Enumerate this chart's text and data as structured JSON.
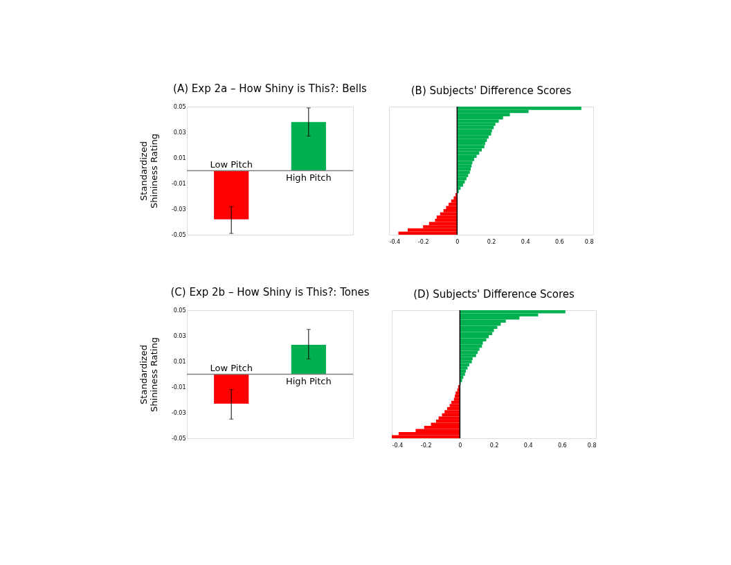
{
  "chart_data": [
    {
      "type": "bar",
      "title": "(A) Exp 2a – How Shiny is This?: Bells",
      "ylabel": "Standardized Shininess Rating",
      "categories": [
        "Low Pitch",
        "High Pitch"
      ],
      "colors": [
        "#ff0000",
        "#00b050"
      ],
      "values": [
        -0.038,
        0.038
      ],
      "errors": [
        [
          -0.049,
          -0.028
        ],
        [
          0.027,
          0.049
        ]
      ],
      "ylim": [
        -0.05,
        0.05
      ],
      "yticks": [
        -0.05,
        -0.03,
        -0.01,
        0.01,
        0.03,
        0.05
      ],
      "ref_lines": [
        {
          "axis": "y",
          "value": 0,
          "color": "#808080"
        }
      ],
      "tick_labels": "y",
      "grid": false
    },
    {
      "type": "bar",
      "orientation": "horizontal",
      "title": "(B) Subjects' Difference Scores",
      "categories": [
        null,
        null,
        null,
        null,
        null,
        null,
        null,
        null,
        null,
        null,
        null,
        null,
        null,
        null,
        null,
        null,
        null,
        null,
        null,
        null,
        null,
        null,
        null,
        null,
        null,
        null,
        null,
        null,
        null,
        null,
        null,
        null,
        null,
        null,
        null,
        null,
        null,
        null,
        null,
        null,
        null
      ],
      "values": [
        0.73,
        0.42,
        0.31,
        0.27,
        0.245,
        0.225,
        0.215,
        0.205,
        0.2,
        0.185,
        0.175,
        0.165,
        0.16,
        0.145,
        0.13,
        0.115,
        0.1,
        0.09,
        0.085,
        0.08,
        0.075,
        0.065,
        0.055,
        0.045,
        0.035,
        0.02,
        0.01,
        null,
        -0.01,
        -0.02,
        -0.035,
        -0.05,
        -0.065,
        -0.08,
        -0.1,
        -0.12,
        -0.13,
        -0.165,
        -0.2,
        -0.29,
        -0.345
      ],
      "colors": [
        "#00b050",
        "#00b050",
        "#00b050",
        "#00b050",
        "#00b050",
        "#00b050",
        "#00b050",
        "#00b050",
        "#00b050",
        "#00b050",
        "#00b050",
        "#00b050",
        "#00b050",
        "#00b050",
        "#00b050",
        "#00b050",
        "#00b050",
        "#00b050",
        "#00b050",
        "#00b050",
        "#00b050",
        "#00b050",
        "#00b050",
        "#00b050",
        "#00b050",
        "#00b050",
        "#00b050",
        "#00b050",
        "#ff0000",
        "#ff0000",
        "#ff0000",
        "#ff0000",
        "#ff0000",
        "#ff0000",
        "#ff0000",
        "#ff0000",
        "#ff0000",
        "#ff0000",
        "#ff0000",
        "#ff0000",
        "#ff0000"
      ],
      "xlim": [
        -0.4,
        0.8
      ],
      "xticks": [
        -0.4,
        -0.2,
        0,
        0.2,
        0.4,
        0.6,
        0.8
      ],
      "ref_lines": [
        {
          "axis": "x",
          "value": 0,
          "color": "#000000"
        }
      ],
      "tick_labels": "x",
      "grid": false
    },
    {
      "type": "bar",
      "title": "(C) Exp 2b – How Shiny is This?: Tones",
      "ylabel": "Standardized Shininess Rating",
      "categories": [
        "Low Pitch",
        "High Pitch"
      ],
      "colors": [
        "#ff0000",
        "#00b050"
      ],
      "values": [
        -0.023,
        0.023
      ],
      "errors": [
        [
          -0.035,
          -0.012
        ],
        [
          0.012,
          0.035
        ]
      ],
      "ylim": [
        -0.05,
        0.05
      ],
      "yticks": [
        -0.05,
        -0.03,
        -0.01,
        0.01,
        0.03,
        0.05
      ],
      "ref_lines": [
        {
          "axis": "y",
          "value": 0,
          "color": "#808080"
        }
      ],
      "tick_labels": "y",
      "grid": false
    },
    {
      "type": "bar",
      "orientation": "horizontal",
      "title": "(D) Subjects' Difference Scores",
      "categories": [
        null,
        null,
        null,
        null,
        null,
        null,
        null,
        null,
        null,
        null,
        null,
        null,
        null,
        null,
        null,
        null,
        null,
        null,
        null,
        null,
        null,
        null,
        null,
        null,
        null,
        null,
        null,
        null,
        null,
        null,
        null,
        null,
        null,
        null,
        null,
        null,
        null,
        null,
        null,
        null,
        null
      ],
      "values": [
        0.62,
        0.46,
        0.35,
        0.27,
        0.24,
        0.22,
        0.2,
        0.19,
        0.17,
        0.155,
        0.135,
        0.13,
        0.115,
        0.105,
        0.095,
        0.075,
        0.07,
        0.055,
        0.045,
        0.035,
        0.03,
        0.02,
        0.013,
        0.005,
        -0.01,
        -0.015,
        -0.025,
        -0.03,
        -0.035,
        -0.05,
        -0.06,
        -0.075,
        -0.09,
        -0.105,
        -0.125,
        -0.14,
        -0.17,
        -0.21,
        -0.26,
        -0.36,
        -0.4
      ],
      "colors": [
        "#00b050",
        "#00b050",
        "#00b050",
        "#00b050",
        "#00b050",
        "#00b050",
        "#00b050",
        "#00b050",
        "#00b050",
        "#00b050",
        "#00b050",
        "#00b050",
        "#00b050",
        "#00b050",
        "#00b050",
        "#00b050",
        "#00b050",
        "#00b050",
        "#00b050",
        "#00b050",
        "#00b050",
        "#00b050",
        "#00b050",
        "#00b050",
        "#ff0000",
        "#ff0000",
        "#ff0000",
        "#ff0000",
        "#ff0000",
        "#ff0000",
        "#ff0000",
        "#ff0000",
        "#ff0000",
        "#ff0000",
        "#ff0000",
        "#ff0000",
        "#ff0000",
        "#ff0000",
        "#ff0000",
        "#ff0000",
        "#ff0000"
      ],
      "xlim": [
        -0.4,
        0.8
      ],
      "xticks": [
        -0.4,
        -0.2,
        0,
        0.2,
        0.4,
        0.6,
        0.8
      ],
      "ref_lines": [
        {
          "axis": "x",
          "value": 0,
          "color": "#000000"
        }
      ],
      "tick_labels": "x",
      "grid": false
    }
  ]
}
